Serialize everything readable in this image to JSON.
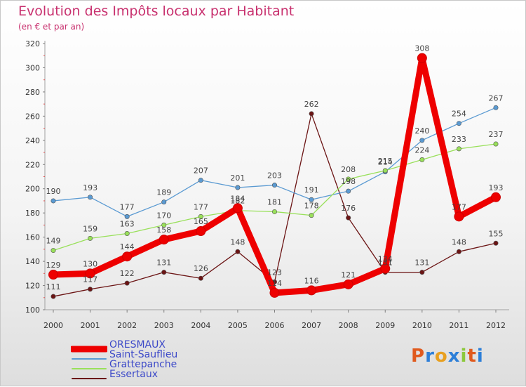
{
  "header": {
    "title": "Evolution des Impôts locaux par Habitant",
    "subtitle": "(en € et par an)"
  },
  "logo": {
    "text": "Proxiti"
  },
  "chart_data": {
    "type": "line",
    "title": "Evolution des Impôts locaux par Habitant",
    "subtitle": "(en € et par an)",
    "xlabel": "",
    "ylabel": "",
    "ylim": [
      100,
      320
    ],
    "yticks": [
      100,
      120,
      140,
      160,
      180,
      200,
      220,
      240,
      260,
      280,
      300,
      320
    ],
    "grid": false,
    "legend_position": "bottom-left",
    "x": [
      "2000",
      "2001",
      "2002",
      "2003",
      "2004",
      "2005",
      "2006",
      "2007",
      "2008",
      "2009",
      "2010",
      "2011",
      "2012"
    ],
    "series": [
      {
        "name": "ORESMAUX",
        "color": "#ee0000",
        "values": [
          129,
          130,
          144,
          158,
          165,
          184,
          114,
          116,
          121,
          134,
          308,
          177,
          193
        ]
      },
      {
        "name": "Saint-Sauflieu",
        "color": "#5a9ad2",
        "values": [
          190,
          193,
          177,
          189,
          207,
          201,
          203,
          191,
          198,
          214,
          240,
          254,
          267
        ]
      },
      {
        "name": "Grattepanche",
        "color": "#99e05a",
        "values": [
          149,
          159,
          163,
          170,
          177,
          182,
          181,
          178,
          208,
          215,
          224,
          233,
          237
        ]
      },
      {
        "name": "Essertaux",
        "color": "#6b1414",
        "values": [
          111,
          117,
          122,
          131,
          126,
          148,
          123,
          262,
          176,
          131,
          131,
          148,
          155
        ]
      }
    ]
  }
}
